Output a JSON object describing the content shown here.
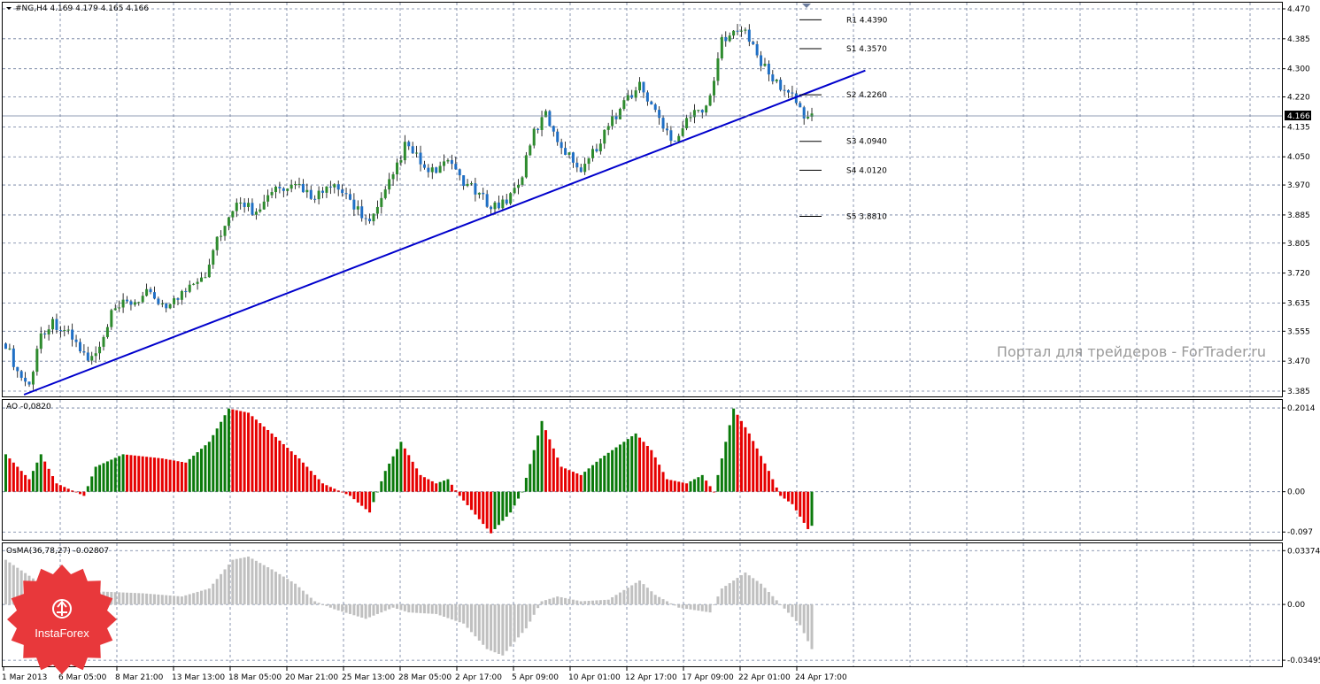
{
  "chart_data": [
    {
      "type": "candlestick",
      "title": "#NG,H4  4.169 4.179 4.165 4.166",
      "last_price_label": "4.166",
      "y_ticks": [
        "4.470",
        "4.385",
        "4.300",
        "4.220",
        "4.135",
        "4.050",
        "3.970",
        "3.885",
        "3.805",
        "3.720",
        "3.635",
        "3.555",
        "3.470",
        "3.385"
      ],
      "ylim": [
        3.375,
        4.48
      ],
      "x_ticks": [
        "1 Mar 2013",
        "6 Mar 05:00",
        "8 Mar 21:00",
        "13 Mar 13:00",
        "18 Mar 05:00",
        "20 Mar 21:00",
        "25 Mar 13:00",
        "28 Mar 05:00",
        "2 Apr 17:00",
        "5 Apr 09:00",
        "10 Apr 01:00",
        "12 Apr 17:00",
        "17 Apr 09:00",
        "22 Apr 01:00",
        "24 Apr 17:00"
      ],
      "close_path": [
        [
          0,
          3.52
        ],
        [
          3,
          3.44
        ],
        [
          6,
          3.4
        ],
        [
          9,
          3.55
        ],
        [
          12,
          3.58
        ],
        [
          15,
          3.56
        ],
        [
          18,
          3.52
        ],
        [
          21,
          3.47
        ],
        [
          24,
          3.5
        ],
        [
          27,
          3.6
        ],
        [
          30,
          3.63
        ],
        [
          33,
          3.64
        ],
        [
          36,
          3.66
        ],
        [
          39,
          3.64
        ],
        [
          42,
          3.63
        ],
        [
          45,
          3.66
        ],
        [
          48,
          3.7
        ],
        [
          51,
          3.72
        ],
        [
          54,
          3.82
        ],
        [
          57,
          3.87
        ],
        [
          60,
          3.93
        ],
        [
          63,
          3.9
        ],
        [
          66,
          3.92
        ],
        [
          69,
          3.96
        ],
        [
          72,
          3.95
        ],
        [
          75,
          3.97
        ],
        [
          78,
          3.94
        ],
        [
          81,
          3.95
        ],
        [
          84,
          3.96
        ],
        [
          87,
          3.94
        ],
        [
          90,
          3.9
        ],
        [
          93,
          3.86
        ],
        [
          96,
          3.92
        ],
        [
          99,
          4.0
        ],
        [
          102,
          4.08
        ],
        [
          105,
          4.05
        ],
        [
          108,
          4.0
        ],
        [
          111,
          4.02
        ],
        [
          114,
          4.03
        ],
        [
          117,
          3.98
        ],
        [
          120,
          3.95
        ],
        [
          123,
          3.92
        ],
        [
          126,
          3.91
        ],
        [
          129,
          3.94
        ],
        [
          132,
          4.0
        ],
        [
          135,
          4.12
        ],
        [
          138,
          4.17
        ],
        [
          141,
          4.1
        ],
        [
          144,
          4.05
        ],
        [
          147,
          4.02
        ],
        [
          150,
          4.06
        ],
        [
          153,
          4.12
        ],
        [
          156,
          4.17
        ],
        [
          159,
          4.22
        ],
        [
          162,
          4.25
        ],
        [
          165,
          4.2
        ],
        [
          168,
          4.13
        ],
        [
          171,
          4.1
        ],
        [
          174,
          4.16
        ],
        [
          177,
          4.18
        ],
        [
          180,
          4.21
        ],
        [
          183,
          4.38
        ],
        [
          186,
          4.42
        ],
        [
          189,
          4.4
        ],
        [
          192,
          4.34
        ],
        [
          195,
          4.28
        ],
        [
          198,
          4.25
        ],
        [
          201,
          4.22
        ],
        [
          204,
          4.17
        ],
        [
          206,
          4.166
        ]
      ],
      "pivot_levels": [
        {
          "label": "R1 4.4390",
          "value": 4.439
        },
        {
          "label": "S1 4.3570",
          "value": 4.357
        },
        {
          "label": "S2 4.2260",
          "value": 4.226
        },
        {
          "label": "S3 4.0940",
          "value": 4.094
        },
        {
          "label": "S4 4.0120",
          "value": 4.012
        },
        {
          "label": "S5 3.8810",
          "value": 3.881
        }
      ],
      "trendline": {
        "from": [
          5,
          3.375
        ],
        "to": [
          220,
          4.295
        ],
        "color": "#0000cc"
      },
      "current_price": 4.166,
      "colors": {
        "bull": "#2e8b2e",
        "bear": "#1f6fc5",
        "wick": "#000000",
        "grid": "#6b7b9c",
        "trend": "#0000cc"
      }
    },
    {
      "type": "bar",
      "title": "AO -0,0820",
      "y_ticks": [
        "0.2014",
        "0.00",
        "-0.097"
      ],
      "ylim": [
        -0.105,
        0.21
      ],
      "segments": [
        [
          0,
          0.09
        ],
        [
          6,
          0.03
        ],
        [
          9,
          0.09
        ],
        [
          13,
          0.02
        ],
        [
          20,
          -0.01
        ],
        [
          23,
          0.06
        ],
        [
          30,
          0.09
        ],
        [
          40,
          0.08
        ],
        [
          46,
          0.07
        ],
        [
          52,
          0.12
        ],
        [
          57,
          0.2
        ],
        [
          62,
          0.19
        ],
        [
          68,
          0.14
        ],
        [
          75,
          0.08
        ],
        [
          81,
          0.02
        ],
        [
          88,
          -0.01
        ],
        [
          93,
          -0.05
        ],
        [
          97,
          0.05
        ],
        [
          101,
          0.12
        ],
        [
          106,
          0.04
        ],
        [
          110,
          0.02
        ],
        [
          113,
          0.03
        ],
        [
          116,
          -0.01
        ],
        [
          124,
          -0.1
        ],
        [
          129,
          -0.05
        ],
        [
          132,
          0.0
        ],
        [
          135,
          0.1
        ],
        [
          137,
          0.17
        ],
        [
          142,
          0.06
        ],
        [
          147,
          0.04
        ],
        [
          152,
          0.08
        ],
        [
          161,
          0.14
        ],
        [
          165,
          0.1
        ],
        [
          169,
          0.03
        ],
        [
          174,
          0.02
        ],
        [
          178,
          0.04
        ],
        [
          181,
          0.0
        ],
        [
          184,
          0.12
        ],
        [
          186,
          0.2
        ],
        [
          190,
          0.14
        ],
        [
          195,
          0.05
        ],
        [
          198,
          -0.01
        ],
        [
          201,
          -0.03
        ],
        [
          205,
          -0.09
        ],
        [
          206,
          -0.082
        ]
      ],
      "colors": {
        "up": "#0b7a0b",
        "down": "#e60000"
      }
    },
    {
      "type": "bar",
      "title": "OsMA(36,78,27) -0.02807",
      "y_ticks": [
        "0.03374",
        "0.00",
        "-0.03495"
      ],
      "ylim": [
        -0.036,
        0.035
      ],
      "segments": [
        [
          0,
          0.028
        ],
        [
          12,
          0.008
        ],
        [
          18,
          0.005
        ],
        [
          25,
          0.008
        ],
        [
          35,
          0.007
        ],
        [
          45,
          0.005
        ],
        [
          52,
          0.01
        ],
        [
          58,
          0.028
        ],
        [
          62,
          0.03
        ],
        [
          68,
          0.022
        ],
        [
          74,
          0.013
        ],
        [
          79,
          0.002
        ],
        [
          84,
          -0.003
        ],
        [
          92,
          -0.009
        ],
        [
          99,
          -0.002
        ],
        [
          103,
          -0.005
        ],
        [
          110,
          -0.006
        ],
        [
          117,
          -0.012
        ],
        [
          123,
          -0.028
        ],
        [
          127,
          -0.032
        ],
        [
          133,
          -0.015
        ],
        [
          137,
          0.002
        ],
        [
          141,
          0.005
        ],
        [
          147,
          0.002
        ],
        [
          154,
          0.003
        ],
        [
          162,
          0.015
        ],
        [
          166,
          0.006
        ],
        [
          172,
          -0.002
        ],
        [
          180,
          -0.005
        ],
        [
          183,
          0.01
        ],
        [
          189,
          0.02
        ],
        [
          193,
          0.013
        ],
        [
          198,
          0.0
        ],
        [
          203,
          -0.013
        ],
        [
          206,
          -0.028
        ]
      ],
      "colors": {
        "bar": "#c0c0c0"
      }
    }
  ],
  "watermark": "Портал для трейдеров - ForTrader.ru",
  "logo": {
    "text": "InstaForex",
    "color": "#e8383b"
  }
}
